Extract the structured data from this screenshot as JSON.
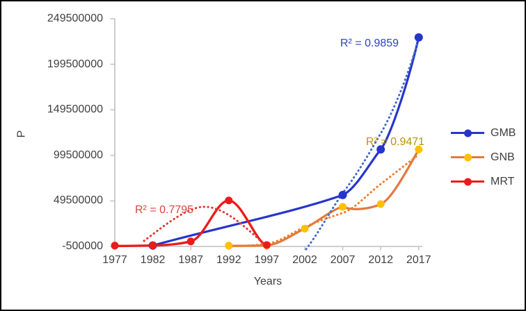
{
  "figure": {
    "background": "#FFFFFF",
    "border_color": "#000000",
    "axis_line_color": "#BFBFBF",
    "tick_label_color": "#3F3F3F"
  },
  "chart_data": {
    "type": "line",
    "title": "",
    "xlabel": "Years",
    "ylabel": "P",
    "grid": false,
    "legend_position": "right",
    "x_range": [
      1977,
      2017
    ],
    "y_range": [
      -500000,
      249500000
    ],
    "x_ticks": [
      "1977",
      "1982",
      "1987",
      "1992",
      "1997",
      "2002",
      "2007",
      "2012",
      "2017"
    ],
    "y_ticks": [
      "249500000",
      "199500000",
      "149500000",
      "99500000",
      "49500000",
      "-500000"
    ],
    "y_tick_values": [
      249500000,
      199500000,
      149500000,
      99500000,
      49500000,
      -500000
    ],
    "series": [
      {
        "name": "GMB",
        "color": "#2535CB",
        "marker_color": "#2535CB",
        "marker_radius": 6,
        "points": [
          [
            1982,
            600000
          ],
          [
            2007,
            56000000
          ],
          [
            2012,
            106000000
          ],
          [
            2017,
            229000000
          ]
        ],
        "trendline": {
          "style": "dotted",
          "color": "#416AC8",
          "r_squared": "R² = 0.9859",
          "label_color": "#2C3FC4",
          "approx_points": [
            [
              2003,
              1000000
            ],
            [
              2007,
              57000000
            ],
            [
              2012,
              126000000
            ],
            [
              2017,
              224000000
            ]
          ]
        }
      },
      {
        "name": "GNB",
        "color": "#E2793B",
        "marker_color": "#FFC000",
        "marker_radius": 5.5,
        "points": [
          [
            1992,
            400000
          ],
          [
            1997,
            600000
          ],
          [
            2002,
            19000000
          ],
          [
            2007,
            43000000
          ],
          [
            2012,
            46000000
          ],
          [
            2017,
            106000000
          ]
        ],
        "trendline": {
          "style": "dotted",
          "color": "#ED7D31",
          "r_squared": "R² = 0.9471",
          "label_color": "#BF9000",
          "approx_points": [
            [
              1992,
              0
            ],
            [
              1997,
              2500000
            ],
            [
              2002,
              21000000
            ],
            [
              2007,
              36000000
            ],
            [
              2012,
              67000000
            ],
            [
              2017,
              100000000
            ]
          ]
        }
      },
      {
        "name": "MRT",
        "color": "#EC1B1B",
        "marker_color": "#EC1B1B",
        "marker_radius": 5.5,
        "points": [
          [
            1977,
            400000
          ],
          [
            1982,
            600000
          ],
          [
            1987,
            5000000
          ],
          [
            1992,
            50000000
          ],
          [
            1997,
            1000000
          ]
        ],
        "trendline": {
          "style": "dotted",
          "color": "#E23A33",
          "r_squared": "R² = 0.7795",
          "label_color": "#D8453C",
          "approx_points": [
            [
              1981,
              1000000
            ],
            [
              1983,
              19000000
            ],
            [
              1987,
              40000000
            ],
            [
              1989,
              43000000
            ],
            [
              1991,
              40000000
            ],
            [
              1993,
              33000000
            ],
            [
              1997,
              1000000
            ]
          ]
        }
      }
    ]
  }
}
